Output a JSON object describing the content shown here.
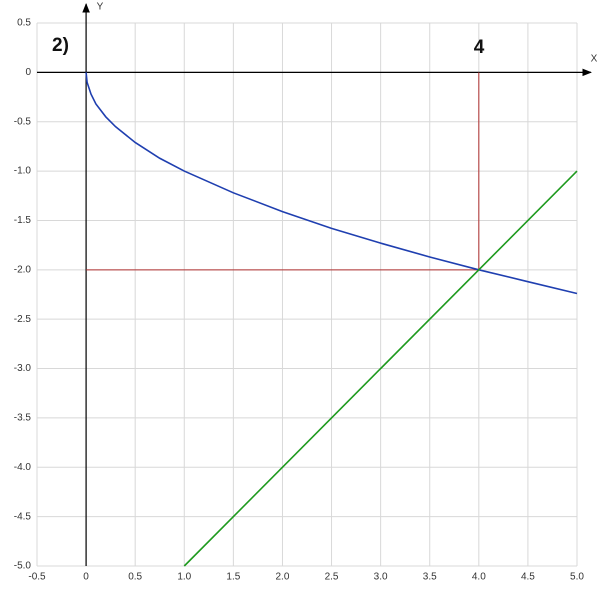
{
  "chart_data": {
    "type": "line",
    "x_label": "X",
    "y_label": "Y",
    "annotations": [
      "2)",
      "4"
    ],
    "xlim": [
      -0.5,
      5.0
    ],
    "ylim": [
      -5.0,
      0.5
    ],
    "xticks": [
      {
        "value": -0.5,
        "label": "-0.5"
      },
      0,
      0.5,
      {
        "value": 1,
        "label": "1.0"
      },
      1.5,
      {
        "value": 2,
        "label": "2.0"
      },
      2.5,
      {
        "value": 3,
        "label": "3.0"
      },
      3.5,
      {
        "value": 4,
        "label": "4.0"
      },
      4.5,
      {
        "value": 5,
        "label": "5.0"
      }
    ],
    "yticks": [
      0.5,
      0,
      -0.5,
      {
        "value": -1,
        "label": "-1.0"
      },
      -1.5,
      {
        "value": -2,
        "label": "-2.0"
      },
      -2.5,
      {
        "value": -3,
        "label": "-3.0"
      },
      -3.5,
      {
        "value": -4,
        "label": "-4.0"
      },
      -4.5,
      {
        "value": -5,
        "label": "-5.0"
      }
    ],
    "grid": true,
    "series": [
      {
        "color": "#1f3fb0",
        "x": [
          0,
          0.01,
          0.05,
          0.1,
          0.2,
          0.3,
          0.5,
          0.75,
          1,
          1.5,
          2,
          2.5,
          3,
          3.5,
          4,
          4.5,
          5
        ],
        "values": [
          0,
          -0.1,
          -0.22,
          -0.32,
          -0.45,
          -0.55,
          -0.71,
          -0.87,
          -1,
          -1.22,
          -1.41,
          -1.58,
          -1.73,
          -1.87,
          -2,
          -2.12,
          -2.24
        ]
      },
      {
        "color": "#1e9a1e",
        "x": [
          1,
          5
        ],
        "values": [
          -5,
          -1
        ]
      },
      {
        "color": "#b03030",
        "x": [
          0,
          4,
          4
        ],
        "values": [
          -2,
          -2,
          0
        ]
      }
    ]
  }
}
